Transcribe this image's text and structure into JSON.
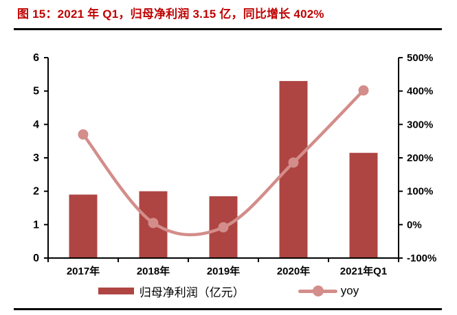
{
  "figure": {
    "title": "图 15：2021 年 Q1，归母净利润 3.15 亿，同比增长 402%"
  },
  "colors": {
    "title": "#C00000",
    "bar": "#AE4542",
    "line": "#D38D8A",
    "axis": "#000000",
    "tick_text": "#000000"
  },
  "legend": {
    "bar_label": "归母净利润（亿元）",
    "line_label": "yoy"
  },
  "chart_data": {
    "type": "bar",
    "subtype": "bar+line-combo",
    "categories": [
      "2017年",
      "2018年",
      "2019年",
      "2020年",
      "2021年Q1"
    ],
    "series": [
      {
        "name": "归母净利润（亿元）",
        "type": "bar",
        "axis": "left",
        "values": [
          1.9,
          2.0,
          1.85,
          5.3,
          3.15
        ]
      },
      {
        "name": "yoy",
        "type": "line",
        "axis": "right",
        "values_pct": [
          270,
          5,
          -8,
          186,
          402
        ]
      }
    ],
    "left_axis": {
      "min": 0,
      "max": 6,
      "tick_values": [
        0,
        1,
        2,
        3,
        4,
        5,
        6
      ]
    },
    "right_axis": {
      "min": -100,
      "max": 500,
      "tick_labels_top_down": [
        "500%",
        "400%",
        "300%",
        "200%",
        "100%",
        "0%",
        "-100%"
      ]
    },
    "grid": false,
    "legend_position": "bottom",
    "line_smooth": true
  }
}
